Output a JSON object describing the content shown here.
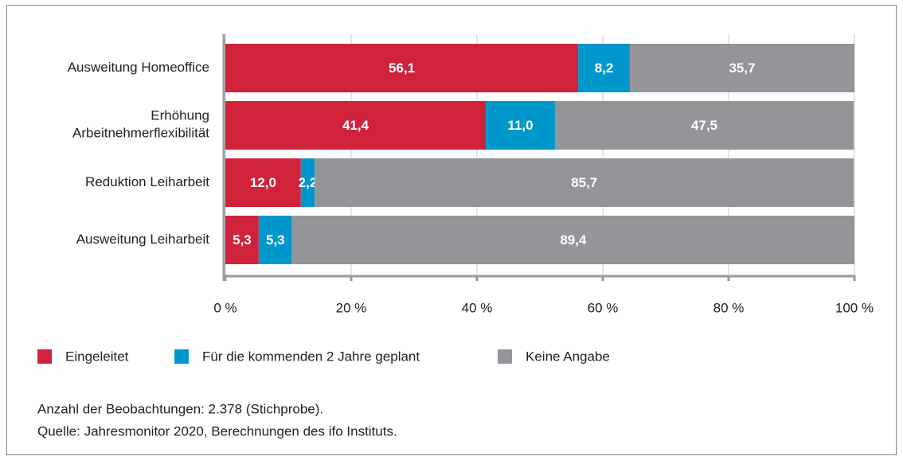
{
  "chart_data": {
    "type": "bar",
    "orientation": "horizontal",
    "stacked": true,
    "categories": [
      "Ausweitung Homeoffice",
      "Erhöhung\nArbeitnehmerflexibilität",
      "Reduktion Leiharbeit",
      "Ausweitung Leiharbeit"
    ],
    "series": [
      {
        "name": "Eingeleitet",
        "color": "#d0223a",
        "values": [
          56.1,
          41.4,
          12.0,
          5.3
        ],
        "value_labels": [
          "56,1",
          "41,4",
          "12,0",
          "5,3"
        ]
      },
      {
        "name": "Für die kommenden 2 Jahre geplant",
        "color": "#0098cc",
        "values": [
          8.2,
          11.0,
          2.2,
          5.3
        ],
        "value_labels": [
          "8,2",
          "11,0",
          "2,2",
          "5,3"
        ]
      },
      {
        "name": "Keine Angabe",
        "color": "#939598",
        "values": [
          35.7,
          47.5,
          85.7,
          89.4
        ],
        "value_labels": [
          "35,7",
          "47,5",
          "85,7",
          "89,4"
        ]
      }
    ],
    "xlim": [
      0,
      100
    ],
    "xticks": [
      {
        "value": 0,
        "label": "0 %"
      },
      {
        "value": 20,
        "label": "20 %"
      },
      {
        "value": 40,
        "label": "40 %"
      },
      {
        "value": 60,
        "label": "60 %"
      },
      {
        "value": 80,
        "label": "80 %"
      },
      {
        "value": 100,
        "label": "100 %"
      }
    ],
    "grid": true,
    "notes": [
      "Anzahl der Beobachtungen: 2.378 (Stichprobe).",
      "Quelle: Jahresmonitor 2020, Berechnungen des ifo Instituts."
    ]
  }
}
